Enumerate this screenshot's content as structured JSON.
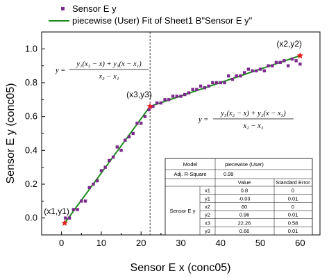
{
  "chart_data": {
    "type": "scatter",
    "xlabel": "Sensor E x (conc05)",
    "ylabel": "Sensor E y (conc05)",
    "xlim": [
      -5,
      65
    ],
    "ylim": [
      -0.1,
      1.1
    ],
    "xticks": [
      0,
      10,
      20,
      30,
      40,
      50,
      60
    ],
    "yticks": [
      0.0,
      0.2,
      0.4,
      0.6,
      0.8,
      1.0
    ],
    "xtick_labels": [
      "0",
      "10",
      "20",
      "30",
      "40",
      "50",
      "60"
    ],
    "ytick_labels": [
      "0.0",
      "0.2",
      "0.4",
      "0.6",
      "0.8",
      "1.0"
    ],
    "grid": false,
    "legend_position": "top-left",
    "series": [
      {
        "name": "Sensor E y",
        "kind": "scatter",
        "color": "#7b2a8c",
        "x": [
          1,
          2,
          3,
          4,
          5,
          6,
          7,
          8,
          9,
          10,
          11,
          12,
          13,
          14,
          15,
          16,
          17,
          18,
          19,
          20,
          21,
          22,
          23,
          24,
          25,
          26,
          27,
          28,
          29,
          30,
          31,
          32,
          33,
          34,
          35,
          36,
          37,
          38,
          39,
          40,
          41,
          42,
          43,
          44,
          45,
          46,
          47,
          48,
          49,
          50,
          51,
          52,
          53,
          54,
          55,
          56,
          57,
          58,
          59,
          60
        ],
        "y": [
          0.0,
          0.0,
          0.05,
          0.05,
          0.1,
          0.1,
          0.18,
          0.2,
          0.22,
          0.28,
          0.3,
          0.34,
          0.36,
          0.42,
          0.4,
          0.46,
          0.48,
          0.5,
          0.56,
          0.56,
          0.6,
          0.64,
          0.66,
          0.68,
          0.68,
          0.7,
          0.7,
          0.72,
          0.72,
          0.72,
          0.73,
          0.74,
          0.76,
          0.76,
          0.78,
          0.77,
          0.78,
          0.8,
          0.8,
          0.8,
          0.8,
          0.84,
          0.82,
          0.84,
          0.84,
          0.86,
          0.88,
          0.87,
          0.87,
          0.88,
          0.87,
          0.9,
          0.9,
          0.92,
          0.92,
          0.93,
          0.9,
          0.94,
          0.93,
          0.91
        ]
      },
      {
        "name": "piecewise (User) Fit of Sheet1 B\"Sensor E y\"",
        "kind": "line",
        "color": "#1a8a1a",
        "x": [
          0.8,
          22.26,
          60
        ],
        "y": [
          -0.03,
          0.66,
          0.96
        ]
      }
    ],
    "points": [
      {
        "label": "(x1,y1)",
        "x": 0.8,
        "y": -0.03
      },
      {
        "label": "(x3,y3)",
        "x": 22.26,
        "y": 0.66
      },
      {
        "label": "(x2,y2)",
        "x": 60,
        "y": 0.96
      }
    ],
    "divider_x": 22.26,
    "star_color": "#e8201e",
    "equations": [
      {
        "lhs": "y =",
        "numerator": "y₁(x₃ − x) + y₃(x − x₁)",
        "denominator": "x₃ − x₁"
      },
      {
        "lhs": "y =",
        "numerator": "y₃(x₂ − x) + y₂(x − x₃)",
        "denominator": "x₂ − x₃"
      }
    ],
    "fit_table": {
      "col_headers": [
        "Model",
        "piecewise (User)"
      ],
      "adj_r_square_label": "Adj. R-Square",
      "adj_r_square": "0.99",
      "param_headers": [
        "Value",
        "Standard Error"
      ],
      "group_label": "Sensor E y",
      "params": [
        {
          "name": "x1",
          "value": "0.8",
          "error": "0"
        },
        {
          "name": "y1",
          "value": "-0.03",
          "error": "0.01"
        },
        {
          "name": "x2",
          "value": "60",
          "error": "0"
        },
        {
          "name": "y2",
          "value": "0.96",
          "error": "0.01"
        },
        {
          "name": "x3",
          "value": "22.26",
          "error": "0.58"
        },
        {
          "name": "y3",
          "value": "0.66",
          "error": "0.01"
        }
      ]
    }
  }
}
